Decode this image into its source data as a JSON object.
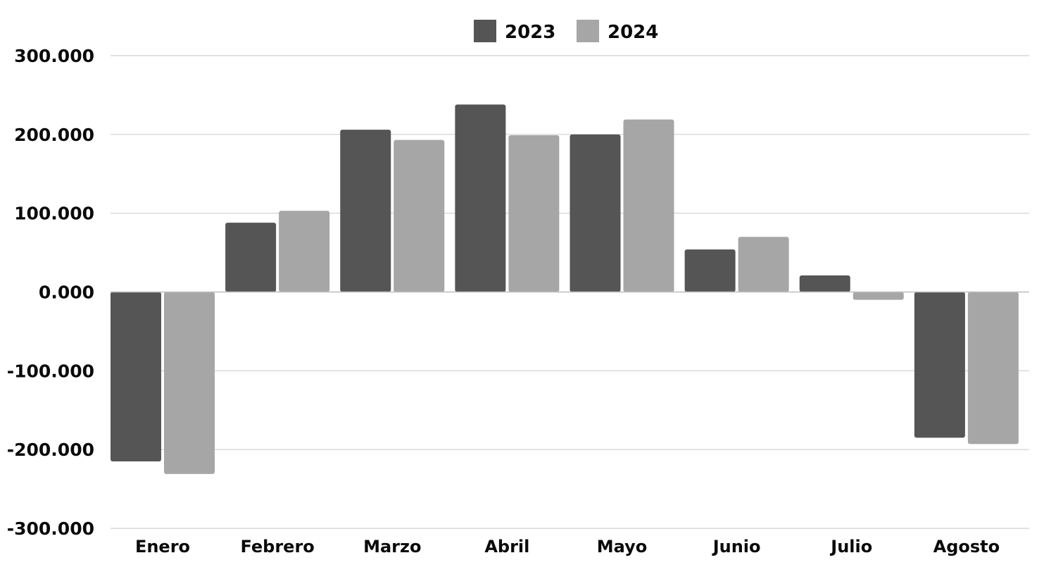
{
  "chart_data": {
    "type": "bar",
    "categories": [
      "Enero",
      "Febrero",
      "Marzo",
      "Abril",
      "Mayo",
      "Junio",
      "Julio",
      "Agosto"
    ],
    "series": [
      {
        "name": "2023",
        "color": "#555555",
        "values": [
          -215000,
          88000,
          206000,
          238000,
          200000,
          54000,
          21000,
          -185000
        ]
      },
      {
        "name": "2024",
        "color": "#a6a6a6",
        "values": [
          -231000,
          103000,
          193000,
          199000,
          219000,
          70000,
          -10000,
          -193000
        ]
      }
    ],
    "y_ticks": [
      {
        "value": 300000,
        "label": "300.000"
      },
      {
        "value": 200000,
        "label": "200.000"
      },
      {
        "value": 100000,
        "label": "100.000"
      },
      {
        "value": 0,
        "label": "0.000"
      },
      {
        "value": -100000,
        "label": "-100.000"
      },
      {
        "value": -200000,
        "label": "-200.000"
      },
      {
        "value": -300000,
        "label": "-300.000"
      }
    ],
    "ylim": [
      -300000,
      300000
    ],
    "grid": true,
    "legend_position": "top-center",
    "title": "",
    "xlabel": "",
    "ylabel": ""
  }
}
